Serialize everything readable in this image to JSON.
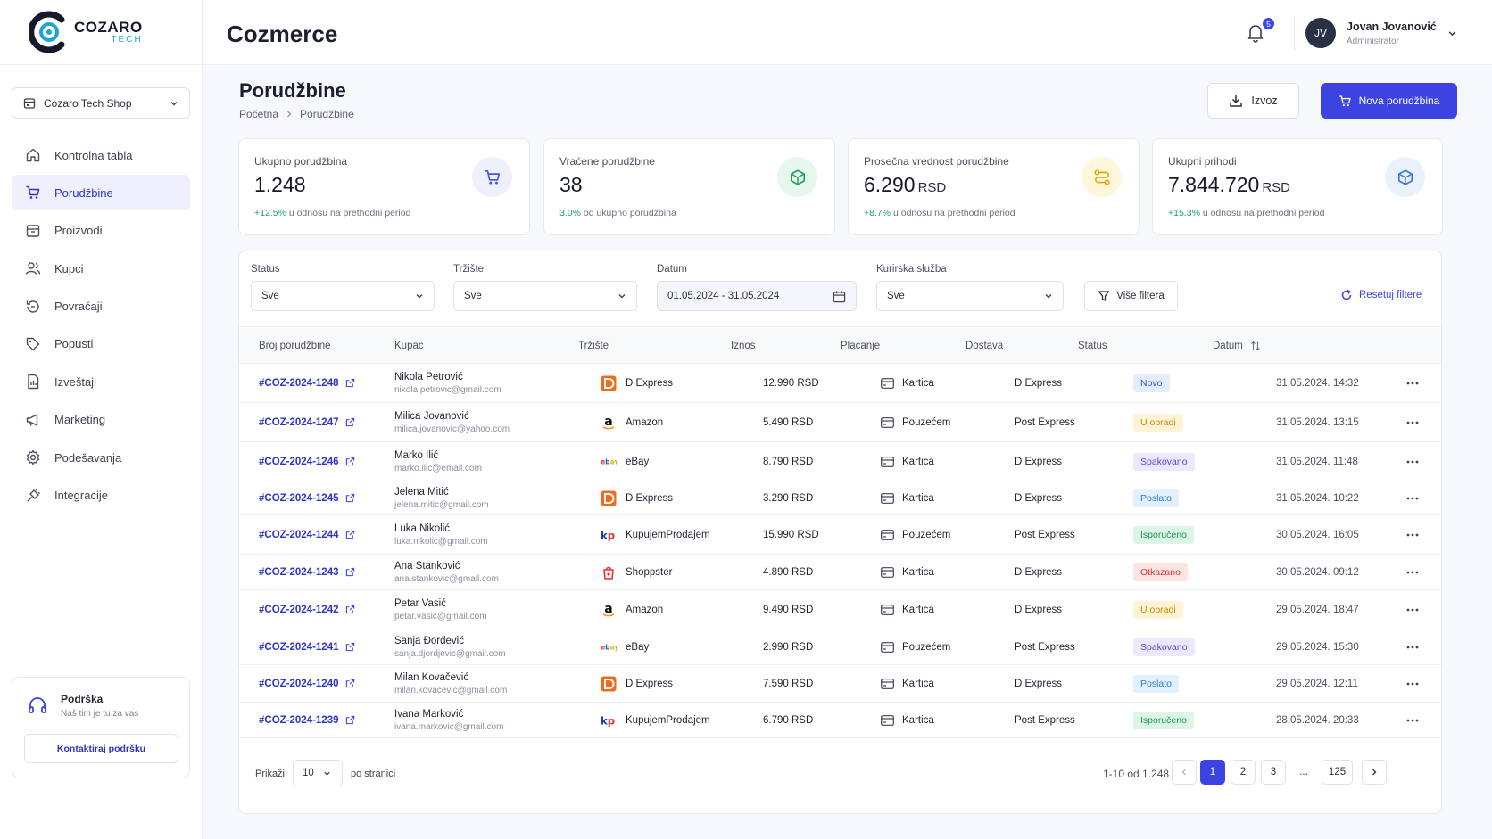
{
  "brand": {
    "name": "COZARO",
    "sub": "TECH"
  },
  "shop": {
    "name": "Cozaro Tech Shop"
  },
  "sidebar": {
    "items": [
      {
        "label": "Kontrolna tabla",
        "icon": "home-icon"
      },
      {
        "label": "Porudžbine",
        "icon": "cart-icon"
      },
      {
        "label": "Proizvodi",
        "icon": "box-icon"
      },
      {
        "label": "Kupci",
        "icon": "users-icon"
      },
      {
        "label": "Povraćaji",
        "icon": "return-icon"
      },
      {
        "label": "Popusti",
        "icon": "tag-icon"
      },
      {
        "label": "Izveštaji",
        "icon": "report-icon"
      },
      {
        "label": "Marketing",
        "icon": "megaphone-icon"
      },
      {
        "label": "Podešavanja",
        "icon": "gear-icon"
      },
      {
        "label": "Integracije",
        "icon": "plug-icon"
      }
    ],
    "active": "Porudžbine"
  },
  "support": {
    "title": "Podrška",
    "subtitle": "Naš tim je tu za vas",
    "button": "Kontaktiraj podršku"
  },
  "header": {
    "app_title": "Cozmerce",
    "notifications": "5",
    "user": {
      "initials": "JV",
      "name": "Jovan Jovanović",
      "role": "Administrator"
    }
  },
  "page": {
    "title": "Porudžbine",
    "breadcrumb": [
      "Početna",
      "Porudžbine"
    ],
    "export_label": "Izvoz",
    "new_order_label": "Nova porudžbina"
  },
  "stats": [
    {
      "label": "Ukupno porudžbina",
      "value": "1.248",
      "unit": "",
      "delta": "+12.5%",
      "delta_text": "u odnosu na prethodni period",
      "icon": "cart-icon",
      "color": "#4a52e6",
      "bg": "#eef0fe"
    },
    {
      "label": "Vraćene porudžbine",
      "value": "38",
      "unit": "",
      "delta": "3.0%",
      "delta_text": "od ukupno porudžbina",
      "icon": "package-icon",
      "color": "#1fa35c",
      "bg": "#e6f7ee"
    },
    {
      "label": "Prosečna vrednost porudžbine",
      "value": "6.290",
      "unit": "RSD",
      "delta": "+8.7%",
      "delta_text": "u odnosu na prethodni period",
      "icon": "route-icon",
      "color": "#e2a600",
      "bg": "#fff6dc"
    },
    {
      "label": "Ukupni prihodi",
      "value": "7.844.720",
      "unit": "RSD",
      "delta": "+15.3%",
      "delta_text": "u odnosu na prethodni period",
      "icon": "cube-icon",
      "color": "#3f7ad8",
      "bg": "#e8f1fc"
    }
  ],
  "filters": {
    "status": {
      "label": "Status",
      "value": "Sve"
    },
    "market": {
      "label": "Tržište",
      "value": "Sve"
    },
    "date": {
      "label": "Datum",
      "value": "01.05.2024 - 31.05.2024"
    },
    "courier": {
      "label": "Kurirska služba",
      "value": "Sve"
    },
    "more_label": "Više filtera",
    "reset_label": "Resetuj filtere"
  },
  "table": {
    "headers": {
      "order": "Broj porudžbine",
      "customer": "Kupac",
      "market": "Tržište",
      "amount": "Iznos",
      "payment": "Plaćanje",
      "shipping": "Dostava",
      "status": "Status",
      "date": "Datum"
    },
    "rows": [
      {
        "order": "#COZ-2024-1248",
        "name": "Nikola Petrović",
        "email": "nikola.petrovic@gmail.com",
        "market": "D Express",
        "market_icon": "dexpress-icon",
        "amount": "12.990 RSD",
        "payment": "Kartica",
        "shipping": "D Express",
        "status": "Novo",
        "status_type": "novo",
        "date": "31.05.2024. 14:32"
      },
      {
        "order": "#COZ-2024-1247",
        "name": "Milica Jovanović",
        "email": "milica.jovanovic@yahoo.com",
        "market": "Amazon",
        "market_icon": "amazon-icon",
        "amount": "5.490 RSD",
        "payment": "Pouzećem",
        "shipping": "Post Express",
        "status": "U obradi",
        "status_type": "obradi",
        "date": "31.05.2024. 13:15"
      },
      {
        "order": "#COZ-2024-1246",
        "name": "Marko Ilić",
        "email": "marko.ilic@email.com",
        "market": "eBay",
        "market_icon": "ebay-icon",
        "amount": "8.790 RSD",
        "payment": "Kartica",
        "shipping": "D Express",
        "status": "Spakovano",
        "status_type": "spak",
        "date": "31.05.2024. 11:48"
      },
      {
        "order": "#COZ-2024-1245",
        "name": "Jelena Mitić",
        "email": "jelena.mitic@gmail.com",
        "market": "D Express",
        "market_icon": "dexpress-icon",
        "amount": "3.290 RSD",
        "payment": "Kartica",
        "shipping": "D Express",
        "status": "Poslato",
        "status_type": "poslato",
        "date": "31.05.2024. 10:22"
      },
      {
        "order": "#COZ-2024-1244",
        "name": "Luka Nikolić",
        "email": "luka.nikolic@gmail.com",
        "market": "KupujemProdajem",
        "market_icon": "kp-icon",
        "amount": "15.990 RSD",
        "payment": "Pouzećem",
        "shipping": "Post Express",
        "status": "Isporučeno",
        "status_type": "isp",
        "date": "30.05.2024. 16:05"
      },
      {
        "order": "#COZ-2024-1243",
        "name": "Ana Stanković",
        "email": "ana.stankovic@gmail.com",
        "market": "Shoppster",
        "market_icon": "shoppster-icon",
        "amount": "4.890 RSD",
        "payment": "Kartica",
        "shipping": "D Express",
        "status": "Otkazano",
        "status_type": "otk",
        "date": "30.05.2024. 09:12"
      },
      {
        "order": "#COZ-2024-1242",
        "name": "Petar Vasić",
        "email": "petar.vasic@gmail.com",
        "market": "Amazon",
        "market_icon": "amazon-icon",
        "amount": "9.490 RSD",
        "payment": "Kartica",
        "shipping": "D Express",
        "status": "U obradi",
        "status_type": "obradi",
        "date": "29.05.2024. 18:47"
      },
      {
        "order": "#COZ-2024-1241",
        "name": "Sanja Đorđević",
        "email": "sanja.djordjevic@gmail.com",
        "market": "eBay",
        "market_icon": "ebay-icon",
        "amount": "2.990 RSD",
        "payment": "Pouzećem",
        "shipping": "Post Express",
        "status": "Spakovano",
        "status_type": "spak",
        "date": "29.05.2024. 15:30"
      },
      {
        "order": "#COZ-2024-1240",
        "name": "Milan Kovačević",
        "email": "milan.kovacevic@gmail.com",
        "market": "D Express",
        "market_icon": "dexpress-icon",
        "amount": "7.590 RSD",
        "payment": "Kartica",
        "shipping": "D Express",
        "status": "Poslato",
        "status_type": "poslato",
        "date": "29.05.2024. 12:11"
      },
      {
        "order": "#COZ-2024-1239",
        "name": "Ivana Marković",
        "email": "ivana.markovic@gmail.com",
        "market": "KupujemProdajem",
        "market_icon": "kp-icon",
        "amount": "6.790 RSD",
        "payment": "Kartica",
        "shipping": "Post Express",
        "status": "Isporučeno",
        "status_type": "isp",
        "date": "28.05.2024. 20:33"
      }
    ]
  },
  "pagination": {
    "show_label": "Prikaži",
    "per_page": "10",
    "per_page_label": "po stranici",
    "range": "1-10 od 1.248",
    "pages": [
      "1",
      "2",
      "3",
      "...",
      "125"
    ],
    "current": "1"
  }
}
